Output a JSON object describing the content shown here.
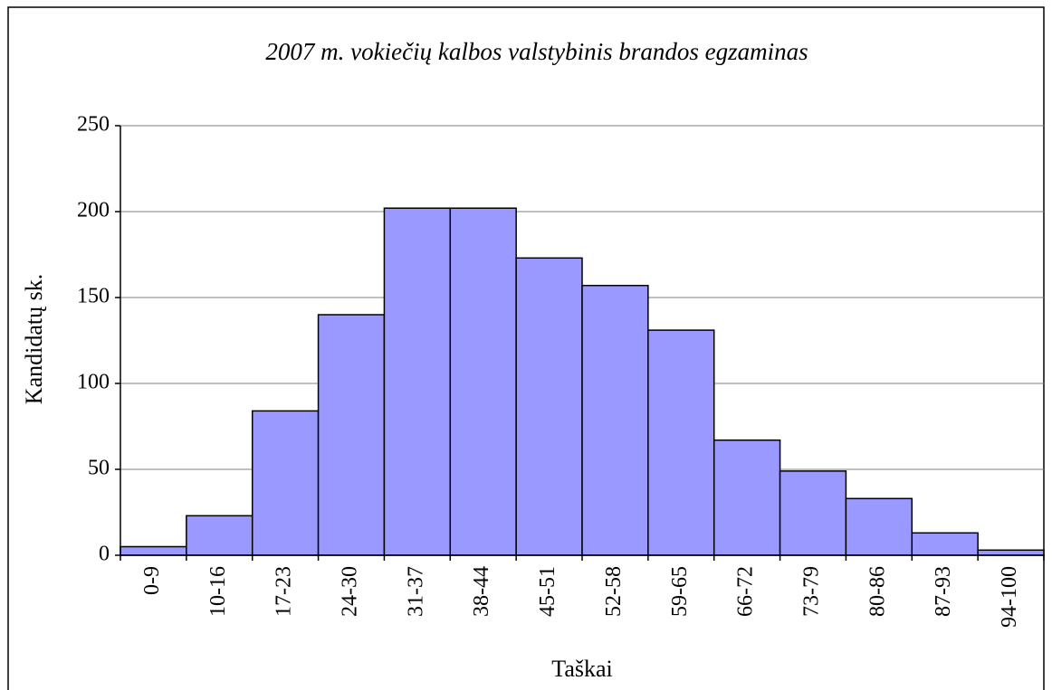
{
  "chart_data": {
    "type": "bar",
    "title": "2007 m. vokiečių kalbos valstybinis brandos egzaminas",
    "x_label": "Taškai",
    "y_label": "Kandidatų sk.",
    "categories": [
      "0-9",
      "10-16",
      "17-23",
      "24-30",
      "31-37",
      "38-44",
      "45-51",
      "52-58",
      "59-65",
      "66-72",
      "73-79",
      "80-86",
      "87-93",
      "94-100"
    ],
    "values": [
      5,
      23,
      84,
      140,
      202,
      202,
      173,
      157,
      131,
      67,
      49,
      33,
      13,
      3
    ],
    "color": "#9999ff",
    "ylim": [
      0,
      250
    ],
    "yticks": [
      0,
      50,
      100,
      150,
      200,
      250
    ],
    "grid": true
  }
}
